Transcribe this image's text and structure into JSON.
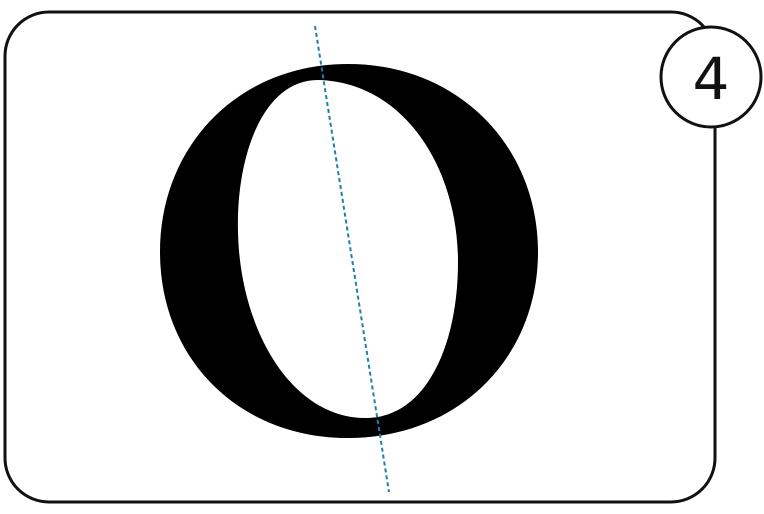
{
  "badge": {
    "number": "4"
  },
  "glyph": {
    "name": "letter-o-stress-axis",
    "fill_color": "#000000",
    "axis_color": "#1a7fb0"
  },
  "frame": {
    "stroke_color": "#111111"
  }
}
